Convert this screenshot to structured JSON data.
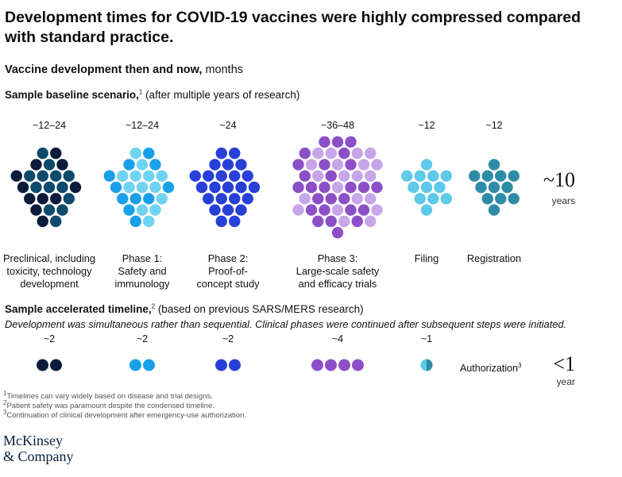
{
  "title": "Development times for COVID-19 vaccines were highly compressed compared with standard practice.",
  "subtitle": {
    "bold": "Vaccine development then and now,",
    "unit": "months"
  },
  "baseline": {
    "heading_bold": "Sample baseline scenario,",
    "heading_sup": "1",
    "heading_rest": "(after multiple years of research)",
    "total_value": "~10",
    "total_unit": "years"
  },
  "accelerated": {
    "heading_bold": "Sample accelerated timeline,",
    "heading_sup": "2",
    "heading_rest": "(based on previous SARS/MERS research)",
    "note": "Development was simultaneous rather than sequential. Clinical phases were continued after subsequent steps were initiated.",
    "authorization_label": "Authorization",
    "authorization_sup": "3",
    "total_value": "<1",
    "total_unit": "year"
  },
  "chart_data": {
    "type": "dot-cluster",
    "unit": "months",
    "stages": [
      {
        "label_lines": [
          "Preclinical, including",
          "toxicity, technology",
          "development"
        ],
        "baseline": "~12–24",
        "baseline_months": 24,
        "accelerated": "~2",
        "accelerated_months": 2,
        "colors": [
          "#0b1b3a",
          "#0e4a6b"
        ]
      },
      {
        "label_lines": [
          "Phase 1:",
          "Safety and",
          "immunology"
        ],
        "baseline": "~12–24",
        "baseline_months": 24,
        "accelerated": "~2",
        "accelerated_months": 2,
        "colors": [
          "#1aa0e8",
          "#6fd3f2"
        ]
      },
      {
        "label_lines": [
          "Phase 2:",
          "Proof-of-",
          "concept study"
        ],
        "baseline": "~24",
        "baseline_months": 24,
        "accelerated": "~2",
        "accelerated_months": 2,
        "colors": [
          "#2840d8"
        ]
      },
      {
        "label_lines": [
          "Phase 3:",
          "Large-scale safety",
          "and efficacy trials"
        ],
        "baseline": "~36–48",
        "baseline_months": 48,
        "accelerated": "~4",
        "accelerated_months": 4,
        "colors": [
          "#8d4fc8",
          "#c6a6e8"
        ]
      },
      {
        "label_lines": [
          "Filing"
        ],
        "baseline": "~12",
        "baseline_months": 12,
        "accelerated": "~1",
        "accelerated_months": 1,
        "colors": [
          "#5ec9e8"
        ]
      },
      {
        "label_lines": [
          "Registration"
        ],
        "baseline": "~12",
        "baseline_months": 12,
        "accelerated": null,
        "accelerated_months": null,
        "colors": [
          "#2f8ca6"
        ]
      }
    ]
  },
  "footnotes": [
    {
      "sup": "1",
      "text": "Timelines can vary widely based on disease and trial designs."
    },
    {
      "sup": "2",
      "text": "Patient safety was paramount despite the condensed timeline."
    },
    {
      "sup": "3",
      "text": "Continuation of clinical development after emergency-use authorization."
    }
  ],
  "logo": {
    "line1": "McKinsey",
    "line2": "& Company"
  }
}
